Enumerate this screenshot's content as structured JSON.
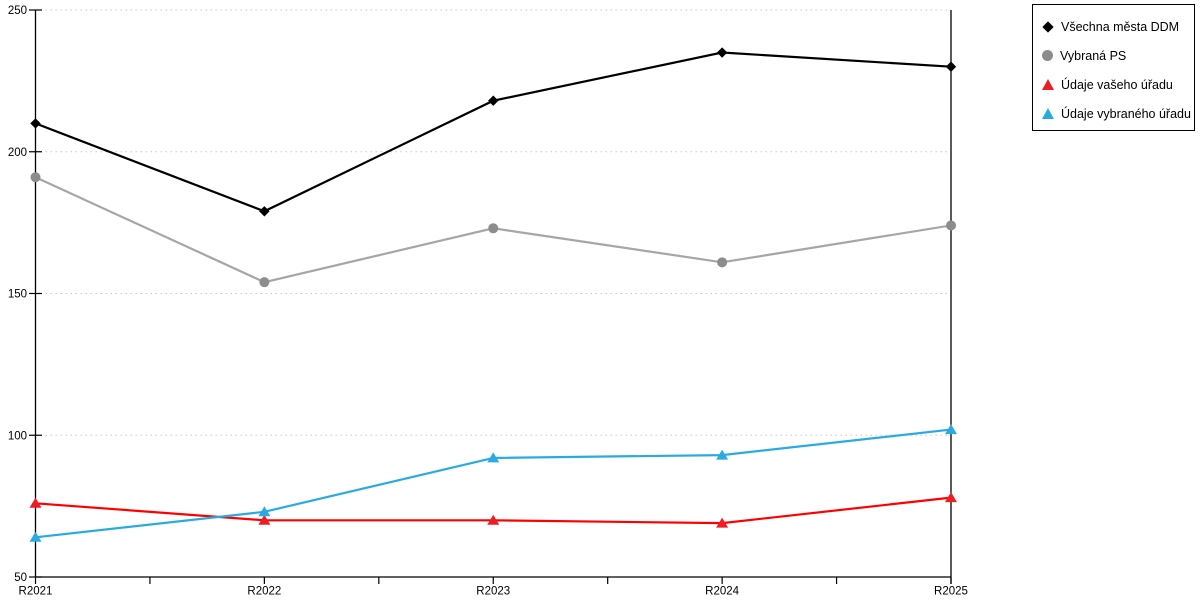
{
  "chart_data": {
    "type": "line",
    "categories": [
      "R2021",
      "R2022",
      "R2023",
      "R2024",
      "R2025"
    ],
    "series": [
      {
        "name": "Všechna města DDM",
        "marker": "diamond",
        "color": "#000000",
        "marker_color": "#000000",
        "values": [
          210,
          179,
          218,
          235,
          230
        ]
      },
      {
        "name": "Vybraná PS",
        "marker": "circle",
        "color": "#a6a6a6",
        "marker_color": "#8c8c8c",
        "values": [
          191,
          154,
          173,
          161,
          174
        ]
      },
      {
        "name": "Údaje vašeho úřadu",
        "marker": "triangle",
        "color": "#ff0000",
        "marker_color": "#ee1c25",
        "values": [
          76,
          70,
          70,
          69,
          78
        ]
      },
      {
        "name": "Údaje vybraného úřadu",
        "marker": "triangle",
        "color": "#29abe2",
        "marker_color": "#29abe2",
        "values": [
          64,
          73,
          92,
          93,
          102
        ]
      }
    ],
    "title": "",
    "xlabel": "",
    "ylabel": "",
    "ylim": [
      50,
      250
    ],
    "y_ticks": [
      250,
      200,
      150,
      100,
      50
    ],
    "grid": "horizontal-dotted",
    "grid_color": "#c8c8c8",
    "axis_color": "#000000",
    "legend_position": "top-right"
  }
}
